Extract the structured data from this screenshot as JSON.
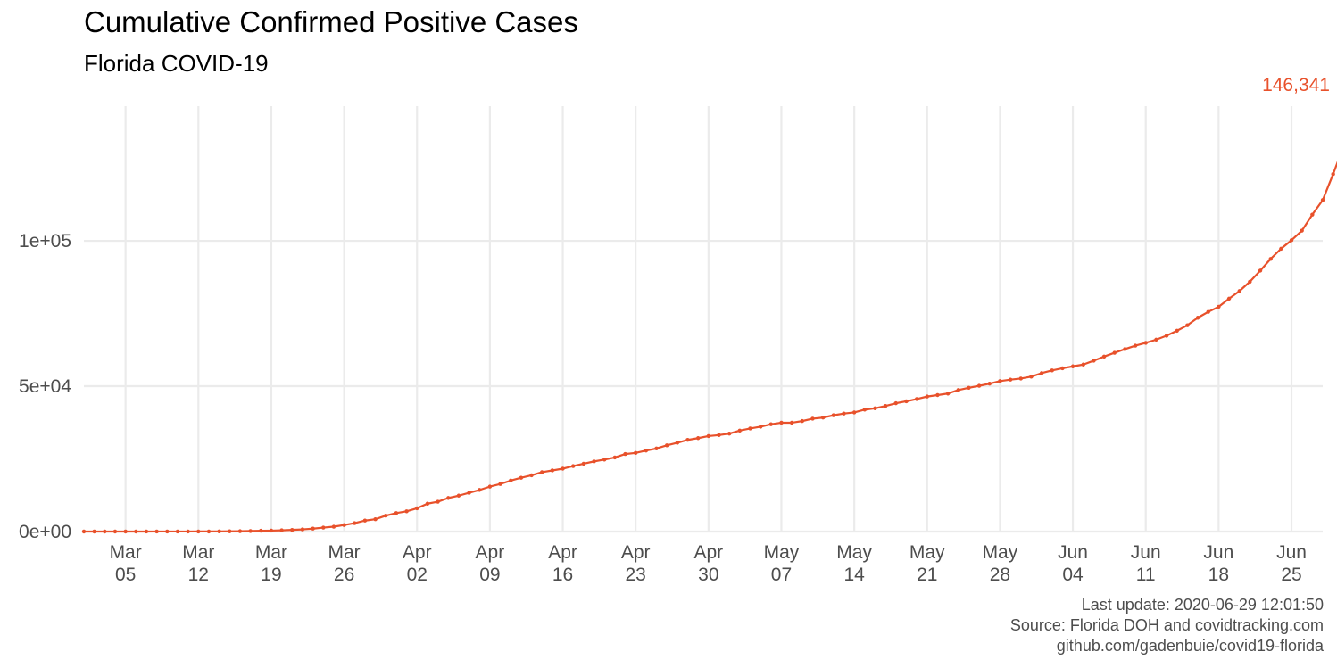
{
  "chart_data": {
    "type": "line",
    "title": "Cumulative Confirmed Positive Cases",
    "subtitle": "Florida COVID-19",
    "xlabel": "",
    "ylabel": "",
    "x_start": "2020-03-01",
    "x_end": "2020-06-28",
    "xlim": [
      "2020-03-01",
      "2020-06-28"
    ],
    "ylim": [
      0,
      146341
    ],
    "y_ticks": [
      0,
      50000,
      100000
    ],
    "y_tick_labels": [
      "0e+00",
      "5e+04",
      "1e+05"
    ],
    "x_ticks": [
      "2020-03-05",
      "2020-03-12",
      "2020-03-19",
      "2020-03-26",
      "2020-04-02",
      "2020-04-09",
      "2020-04-16",
      "2020-04-23",
      "2020-04-30",
      "2020-05-07",
      "2020-05-14",
      "2020-05-21",
      "2020-05-28",
      "2020-06-04",
      "2020-06-11",
      "2020-06-18",
      "2020-06-25"
    ],
    "x_tick_labels": [
      [
        "Mar",
        "05"
      ],
      [
        "Mar",
        "12"
      ],
      [
        "Mar",
        "19"
      ],
      [
        "Mar",
        "26"
      ],
      [
        "Apr",
        "02"
      ],
      [
        "Apr",
        "09"
      ],
      [
        "Apr",
        "16"
      ],
      [
        "Apr",
        "23"
      ],
      [
        "Apr",
        "30"
      ],
      [
        "May",
        "07"
      ],
      [
        "May",
        "14"
      ],
      [
        "May",
        "21"
      ],
      [
        "May",
        "28"
      ],
      [
        "Jun",
        "04"
      ],
      [
        "Jun",
        "11"
      ],
      [
        "Jun",
        "18"
      ],
      [
        "Jun",
        "25"
      ]
    ],
    "grid": true,
    "legend": "none",
    "series": [
      {
        "color": "#e8512b",
        "values": [
          2,
          2,
          2,
          2,
          3,
          4,
          7,
          12,
          14,
          18,
          22,
          27,
          35,
          57,
          77,
          115,
          186,
          284,
          328,
          429,
          563,
          738,
          1007,
          1357,
          1682,
          2237,
          2900,
          3763,
          4246,
          5473,
          6338,
          6955,
          8010,
          9585,
          10268,
          11545,
          12350,
          13324,
          14302,
          15456,
          16364,
          17531,
          18494,
          19355,
          20412,
          21019,
          21628,
          22519,
          23340,
          24119,
          24753,
          25492,
          26660,
          27058,
          27869,
          28576,
          29648,
          30533,
          31528,
          32138,
          32846,
          33193,
          33690,
          34728,
          35463,
          36078,
          36897,
          37439,
          37439,
          38002,
          38828,
          39199,
          40001,
          40596,
          40982,
          41923,
          42402,
          43210,
          44138,
          44811,
          45588,
          46442,
          46944,
          47471,
          48675,
          49451,
          50127,
          50867,
          51746,
          52255,
          52634,
          53285,
          54497,
          55424,
          56163,
          56830,
          57447,
          58764,
          60183,
          61488,
          62758,
          63938,
          64904,
          66000,
          67371,
          69069,
          70971,
          73552,
          75568,
          77326,
          80109,
          82719,
          85926,
          89748,
          93797,
          97291,
          100217,
          103503,
          109014,
          114018,
          122960,
          132545,
          141075,
          146341
        ]
      }
    ],
    "end_label": "146,341",
    "caption": [
      "Last update: 2020-06-29 12:01:50",
      "Source: Florida DOH and covidtracking.com",
      "github.com/gadenbuie/covid19-florida"
    ]
  }
}
